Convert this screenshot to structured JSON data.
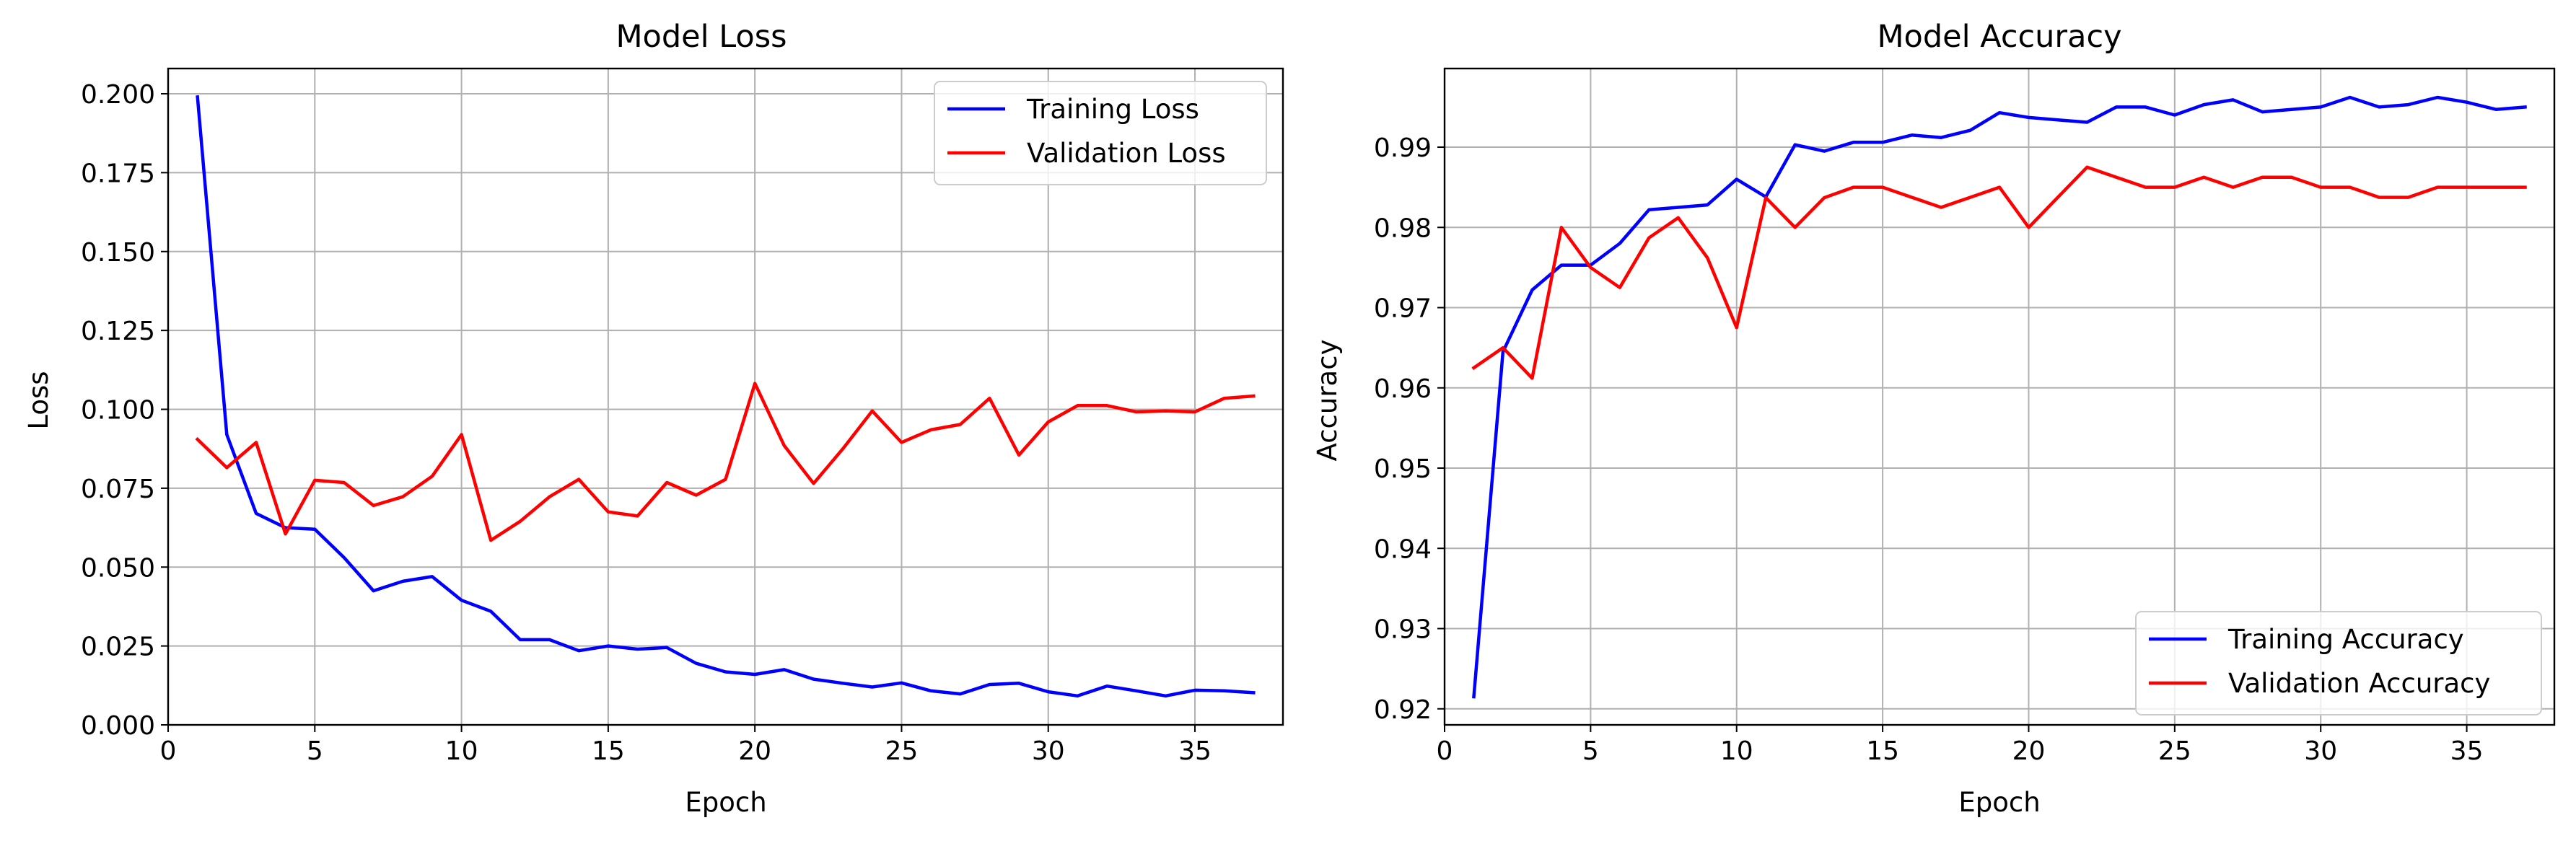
{
  "chart_data": [
    {
      "type": "line",
      "title": "Model Loss",
      "xlabel": "Epoch",
      "ylabel": "Loss",
      "xlim": [
        0,
        38
      ],
      "ylim": [
        0,
        0.208
      ],
      "xticks": [
        "0",
        "5",
        "10",
        "15",
        "20",
        "25",
        "30",
        "35"
      ],
      "xtick_values": [
        0,
        5,
        10,
        15,
        20,
        25,
        30,
        35
      ],
      "yticks": [
        "0.000",
        "0.025",
        "0.050",
        "0.075",
        "0.100",
        "0.125",
        "0.150",
        "0.175",
        "0.200"
      ],
      "ytick_values": [
        0,
        0.025,
        0.05,
        0.075,
        0.1,
        0.125,
        0.15,
        0.175,
        0.2
      ],
      "grid": true,
      "legend_position": "top-right",
      "x": [
        1,
        2,
        3,
        4,
        5,
        6,
        7,
        8,
        9,
        10,
        11,
        12,
        13,
        14,
        15,
        16,
        17,
        18,
        19,
        20,
        21,
        22,
        23,
        24,
        25,
        26,
        27,
        28,
        29,
        30,
        31,
        32,
        33,
        34,
        35,
        36,
        37
      ],
      "series": [
        {
          "name": "Training Loss",
          "color": "#0000ff",
          "values": [
            0.199,
            0.092,
            0.067,
            0.0625,
            0.062,
            0.053,
            0.0425,
            0.0455,
            0.047,
            0.0395,
            0.036,
            0.027,
            0.027,
            0.0235,
            0.025,
            0.024,
            0.0245,
            0.0195,
            0.0168,
            0.016,
            0.0175,
            0.0145,
            0.0132,
            0.012,
            0.0133,
            0.0108,
            0.0098,
            0.0128,
            0.0132,
            0.0105,
            0.0092,
            0.0123,
            0.0108,
            0.0092,
            0.011,
            0.0108,
            0.0102
          ]
        },
        {
          "name": "Validation Loss",
          "color": "#ff0000",
          "values": [
            0.0905,
            0.0815,
            0.0895,
            0.0605,
            0.0775,
            0.0768,
            0.0695,
            0.0723,
            0.0788,
            0.092,
            0.0585,
            0.0645,
            0.0723,
            0.0778,
            0.0675,
            0.0662,
            0.0768,
            0.0728,
            0.0778,
            0.1082,
            0.0885,
            0.0765,
            0.0875,
            0.0995,
            0.0895,
            0.0935,
            0.0952,
            0.1035,
            0.0855,
            0.096,
            0.1012,
            0.1012,
            0.0992,
            0.0995,
            0.0992,
            0.1035,
            0.1042
          ]
        }
      ]
    },
    {
      "type": "line",
      "title": "Model Accuracy",
      "xlabel": "Epoch",
      "ylabel": "Accuracy",
      "xlim": [
        0,
        38
      ],
      "ylim": [
        0.918,
        0.9998
      ],
      "xticks": [
        "0",
        "5",
        "10",
        "15",
        "20",
        "25",
        "30",
        "35"
      ],
      "xtick_values": [
        0,
        5,
        10,
        15,
        20,
        25,
        30,
        35
      ],
      "yticks": [
        "0.92",
        "0.93",
        "0.94",
        "0.95",
        "0.96",
        "0.97",
        "0.98",
        "0.99"
      ],
      "ytick_values": [
        0.92,
        0.93,
        0.94,
        0.95,
        0.96,
        0.97,
        0.98,
        0.99
      ],
      "grid": true,
      "legend_position": "bottom-right",
      "x": [
        1,
        2,
        3,
        4,
        5,
        6,
        7,
        8,
        9,
        10,
        11,
        12,
        13,
        14,
        15,
        16,
        17,
        18,
        19,
        20,
        21,
        22,
        23,
        24,
        25,
        26,
        27,
        28,
        29,
        30,
        31,
        32,
        33,
        34,
        35,
        36,
        37
      ],
      "series": [
        {
          "name": "Training Accuracy",
          "color": "#0000ff",
          "values": [
            0.9215,
            0.9645,
            0.9722,
            0.9753,
            0.9753,
            0.978,
            0.9822,
            0.9825,
            0.9828,
            0.986,
            0.9838,
            0.9903,
            0.9895,
            0.9906,
            0.9906,
            0.9915,
            0.9912,
            0.9921,
            0.9943,
            0.9937,
            0.9934,
            0.9931,
            0.995,
            0.995,
            0.994,
            0.9953,
            0.9959,
            0.9944,
            0.9947,
            0.995,
            0.9962,
            0.995,
            0.9953,
            0.9962,
            0.9956,
            0.9947,
            0.995
          ]
        },
        {
          "name": "Validation Accuracy",
          "color": "#ff0000",
          "values": [
            0.9625,
            0.965,
            0.9612,
            0.98,
            0.975,
            0.9725,
            0.9787,
            0.9812,
            0.9762,
            0.9675,
            0.9837,
            0.98,
            0.9837,
            0.985,
            0.985,
            0.98375,
            0.9825,
            0.98375,
            0.985,
            0.98,
            0.98375,
            0.9875,
            0.98625,
            0.985,
            0.985,
            0.98625,
            0.985,
            0.98625,
            0.98625,
            0.985,
            0.985,
            0.98375,
            0.98375,
            0.985,
            0.985,
            0.985,
            0.985
          ]
        }
      ]
    }
  ]
}
